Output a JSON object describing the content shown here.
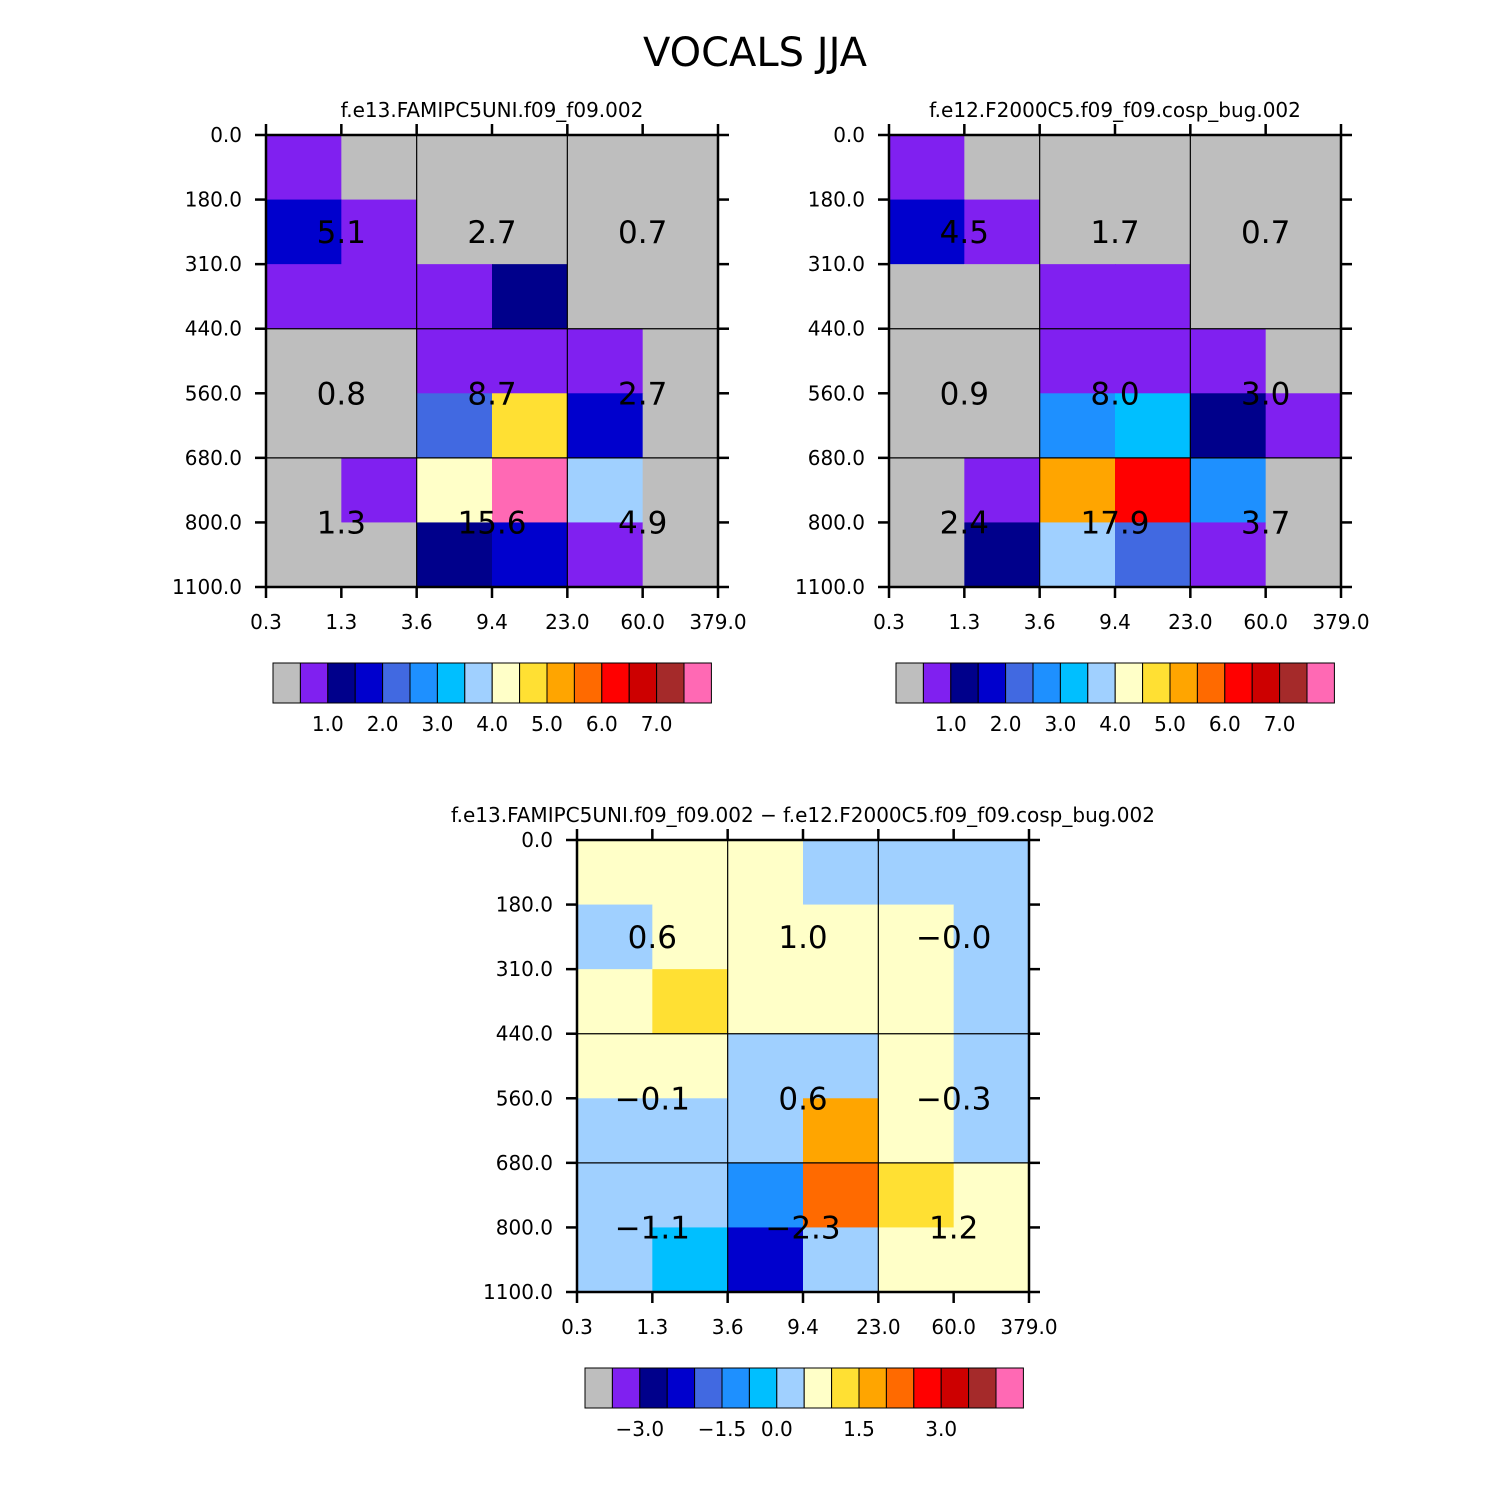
{
  "title": "VOCALS JJA",
  "palette": [
    "#bebebe",
    "#8020f0",
    "#00008b",
    "#0000cd",
    "#4169e1",
    "#1e90ff",
    "#00bfff",
    "#a0d0ff",
    "#ffffc8",
    "#ffe033",
    "#ffa500",
    "#ff6a00",
    "#ff0000",
    "#cd0000",
    "#a52a2a",
    "#ff69b4"
  ],
  "chart_data": [
    {
      "type": "heatmap",
      "title": "f.e13.FAMIPC5UNI.f09_f09.002",
      "xtick_labels": [
        "0.3",
        "1.3",
        "3.6",
        "9.4",
        "23.0",
        "60.0",
        "379.0"
      ],
      "ytick_labels": [
        "0.0",
        "180.0",
        "310.0",
        "440.0",
        "560.0",
        "680.0",
        "800.0",
        "1100.0"
      ],
      "cell_color_index": [
        [
          1,
          0,
          0,
          0,
          0,
          0
        ],
        [
          3,
          1,
          0,
          0,
          0,
          0
        ],
        [
          1,
          1,
          1,
          2,
          0,
          0
        ],
        [
          0,
          0,
          1,
          1,
          1,
          0
        ],
        [
          0,
          0,
          4,
          9,
          3,
          0
        ],
        [
          0,
          1,
          8,
          15,
          7,
          0
        ],
        [
          0,
          0,
          2,
          3,
          1,
          0
        ]
      ],
      "block_values": [
        [
          "5.1",
          "2.7",
          "0.7"
        ],
        [
          "0.8",
          "8.7",
          "2.7"
        ],
        [
          "1.3",
          "15.6",
          "4.9"
        ]
      ],
      "colorbar": {
        "labels": [
          "1.0",
          "2.0",
          "3.0",
          "4.0",
          "5.0",
          "6.0",
          "7.0"
        ],
        "label_after_box": [
          2,
          4,
          6,
          8,
          10,
          12,
          14
        ]
      }
    },
    {
      "type": "heatmap",
      "title": "f.e12.F2000C5.f09_f09.cosp_bug.002",
      "xtick_labels": [
        "0.3",
        "1.3",
        "3.6",
        "9.4",
        "23.0",
        "60.0",
        "379.0"
      ],
      "ytick_labels": [
        "0.0",
        "180.0",
        "310.0",
        "440.0",
        "560.0",
        "680.0",
        "800.0",
        "1100.0"
      ],
      "cell_color_index": [
        [
          1,
          0,
          0,
          0,
          0,
          0
        ],
        [
          3,
          1,
          0,
          0,
          0,
          0
        ],
        [
          0,
          0,
          1,
          1,
          0,
          0
        ],
        [
          0,
          0,
          1,
          1,
          1,
          0
        ],
        [
          0,
          0,
          5,
          6,
          2,
          1
        ],
        [
          0,
          1,
          10,
          12,
          5,
          0
        ],
        [
          0,
          2,
          7,
          4,
          1,
          0
        ]
      ],
      "block_values": [
        [
          "4.5",
          "1.7",
          "0.7"
        ],
        [
          "0.9",
          "8.0",
          "3.0"
        ],
        [
          "2.4",
          "17.9",
          "3.7"
        ]
      ],
      "colorbar": {
        "labels": [
          "1.0",
          "2.0",
          "3.0",
          "4.0",
          "5.0",
          "6.0",
          "7.0"
        ],
        "label_after_box": [
          2,
          4,
          6,
          8,
          10,
          12,
          14
        ]
      }
    },
    {
      "type": "heatmap",
      "title": "f.e13.FAMIPC5UNI.f09_f09.002 − f.e12.F2000C5.f09_f09.cosp_bug.002",
      "xtick_labels": [
        "0.3",
        "1.3",
        "3.6",
        "9.4",
        "23.0",
        "60.0",
        "379.0"
      ],
      "ytick_labels": [
        "0.0",
        "180.0",
        "310.0",
        "440.0",
        "560.0",
        "680.0",
        "800.0",
        "1100.0"
      ],
      "cell_color_index": [
        [
          8,
          8,
          8,
          7,
          7,
          7
        ],
        [
          7,
          8,
          8,
          8,
          8,
          7
        ],
        [
          8,
          9,
          8,
          8,
          8,
          7
        ],
        [
          8,
          8,
          7,
          7,
          8,
          7
        ],
        [
          7,
          7,
          7,
          10,
          8,
          7
        ],
        [
          7,
          7,
          5,
          11,
          9,
          8
        ],
        [
          7,
          6,
          3,
          7,
          8,
          8
        ]
      ],
      "block_values": [
        [
          "0.6",
          "1.0",
          "−0.0"
        ],
        [
          "−0.1",
          "0.6",
          "−0.3"
        ],
        [
          "−1.1",
          "−2.3",
          "1.2"
        ]
      ],
      "colorbar": {
        "labels": [
          "−3.0",
          "−1.5",
          "0.0",
          "1.5",
          "3.0"
        ],
        "label_after_box": [
          2,
          5,
          7,
          10,
          13
        ]
      }
    }
  ]
}
